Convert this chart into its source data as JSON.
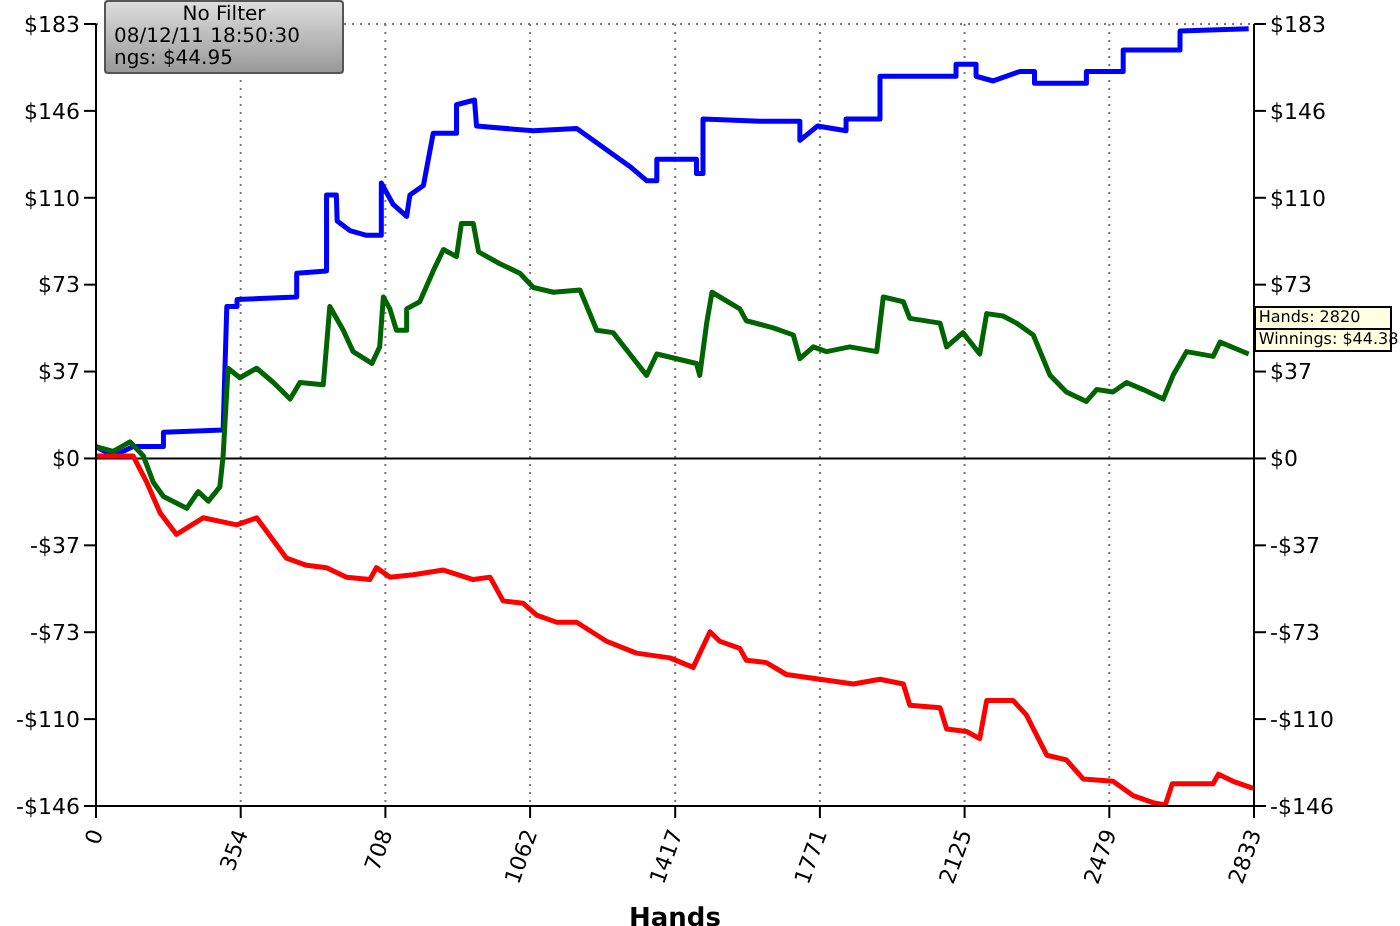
{
  "chart_data": {
    "type": "line",
    "xlabel": "Hands",
    "xlim": [
      0,
      2833
    ],
    "xticks": [
      0,
      354,
      708,
      1062,
      1417,
      1771,
      2125,
      2479,
      2833
    ],
    "ylim": [
      -146.4,
      183
    ],
    "yticks": [
      {
        "value": -146.4,
        "label": "-$146"
      },
      {
        "value": -109.8,
        "label": "-$110"
      },
      {
        "value": -73.2,
        "label": "-$73"
      },
      {
        "value": -36.6,
        "label": "-$37"
      },
      {
        "value": 0,
        "label": "$0"
      },
      {
        "value": 36.6,
        "label": "$37"
      },
      {
        "value": 73.2,
        "label": "$73"
      },
      {
        "value": 109.8,
        "label": "$110"
      },
      {
        "value": 146.4,
        "label": "$146"
      },
      {
        "value": 183,
        "label": "$183"
      }
    ],
    "y2lim": [
      -146.4,
      183
    ],
    "y2ticks": [
      {
        "value": -146.4,
        "label": "-$146"
      },
      {
        "value": -109.8,
        "label": "-$110"
      },
      {
        "value": -73.2,
        "label": "-$73"
      },
      {
        "value": -36.6,
        "label": "-$37"
      },
      {
        "value": 0,
        "label": "$0"
      },
      {
        "value": 36.6,
        "label": "$37"
      },
      {
        "value": 73.2,
        "label": "$73"
      },
      {
        "value": 109.8,
        "label": "$110"
      },
      {
        "value": 146.4,
        "label": "$146"
      },
      {
        "value": 183,
        "label": "$183"
      }
    ],
    "grid": true,
    "line_style": "solid",
    "marker": "none",
    "ref_lines": [
      {
        "axis": "y",
        "value": 0,
        "color": "#000000",
        "line_style": "solid"
      }
    ],
    "annotations": [
      "No Filter",
      "08/12/11 18:50:30",
      "ngs: $44.95",
      {
        "text": "Hands: 2820",
        "x": 2820,
        "y": 44.38
      },
      {
        "text": "Winnings: $44.38",
        "x": 2820,
        "y": 44.38
      }
    ],
    "series": [
      {
        "color": "#0000ff",
        "x": [
          0,
          42,
          91,
          165,
          165,
          311,
          320,
          345,
          345,
          491,
          491,
          564,
          564,
          588,
          590,
          621,
          662,
          698,
          698,
          727,
          760,
          768,
          801,
          825,
          882,
          882,
          926,
          931,
          1070,
          1176,
          1225,
          1306,
          1347,
          1372,
          1372,
          1469,
          1469,
          1485,
          1485,
          1624,
          1722,
          1722,
          1765,
          1835,
          1835,
          1918,
          1918,
          2104,
          2104,
          2153,
          2153,
          2195,
          2260,
          2296,
          2296,
          2423,
          2423,
          2513,
          2513,
          2652,
          2652,
          2820
        ],
        "values": [
          5,
          1,
          5,
          5,
          11,
          12,
          64,
          64,
          67,
          68,
          78,
          79,
          111,
          111,
          100,
          96,
          94,
          94,
          116,
          107,
          102,
          111,
          115,
          137,
          137,
          149,
          151,
          140,
          138,
          139,
          133,
          123,
          117,
          117,
          126,
          126,
          120,
          120,
          143,
          142,
          142,
          134,
          140,
          138,
          143,
          143,
          161,
          161,
          166,
          166,
          161,
          159,
          163,
          163,
          158,
          158,
          163,
          163,
          172,
          172,
          180,
          181
        ]
      },
      {
        "color": "#006400",
        "x": [
          0,
          42,
          83,
          116,
          140,
          165,
          222,
          250,
          275,
          303,
          311,
          323,
          352,
          393,
          434,
          475,
          499,
          556,
          572,
          605,
          629,
          675,
          694,
          703,
          719,
          735,
          760,
          760,
          792,
          825,
          850,
          882,
          894,
          923,
          936,
          988,
          1037,
          1070,
          1119,
          1184,
          1225,
          1265,
          1306,
          1347,
          1372,
          1469,
          1477,
          1494,
          1507,
          1575,
          1591,
          1657,
          1706,
          1722,
          1755,
          1787,
          1844,
          1910,
          1926,
          1975,
          1991,
          2065,
          2081,
          2121,
          2162,
          2179,
          2219,
          2252,
          2293,
          2334,
          2374,
          2423,
          2448,
          2488,
          2521,
          2562,
          2611,
          2635,
          2668,
          2733,
          2750,
          2820
        ],
        "values": [
          5,
          3,
          7,
          1,
          -10,
          -16,
          -21,
          -14,
          -18,
          -12,
          1,
          38,
          34,
          38,
          32,
          25,
          32,
          31,
          64,
          54,
          45,
          40,
          47,
          68,
          63,
          54,
          54,
          63,
          66,
          79,
          88,
          85,
          99,
          99,
          87,
          82,
          78,
          72,
          70,
          71,
          54,
          53,
          44,
          35,
          44,
          40,
          35,
          57,
          70,
          63,
          58,
          55,
          52,
          42,
          47,
          45,
          47,
          45,
          68,
          66,
          59,
          57,
          47,
          53,
          44,
          61,
          60,
          57,
          52,
          35,
          28,
          24,
          29,
          28,
          32,
          29,
          25,
          35,
          45,
          43,
          49,
          44
        ]
      },
      {
        "color": "#ff0000",
        "x": [
          0,
          91,
          124,
          157,
          197,
          262,
          344,
          393,
          466,
          515,
          564,
          613,
          670,
          686,
          719,
          776,
          850,
          923,
          964,
          996,
          1045,
          1078,
          1127,
          1176,
          1249,
          1322,
          1404,
          1461,
          1502,
          1526,
          1575,
          1591,
          1640,
          1689,
          1771,
          1853,
          1918,
          1975,
          1991,
          2065,
          2081,
          2130,
          2162,
          2179,
          2244,
          2276,
          2326,
          2374,
          2415,
          2488,
          2537,
          2586,
          2616,
          2633,
          2733,
          2746,
          2782,
          2831
        ],
        "values": [
          1,
          1,
          -10,
          -23,
          -32,
          -25,
          -28,
          -25,
          -42,
          -45,
          -46,
          -50,
          -51,
          -46,
          -50,
          -49,
          -47,
          -51,
          -50,
          -60,
          -61,
          -66,
          -69,
          -69,
          -77,
          -82,
          -84,
          -88,
          -73,
          -77,
          -80,
          -85,
          -86,
          -91,
          -93,
          -95,
          -93,
          -95,
          -104,
          -105,
          -114,
          -115,
          -118,
          -102,
          -102,
          -108,
          -125,
          -127,
          -135,
          -136,
          -142,
          -145,
          -146,
          -137,
          -137,
          -133,
          -136,
          -139
        ]
      }
    ]
  }
}
